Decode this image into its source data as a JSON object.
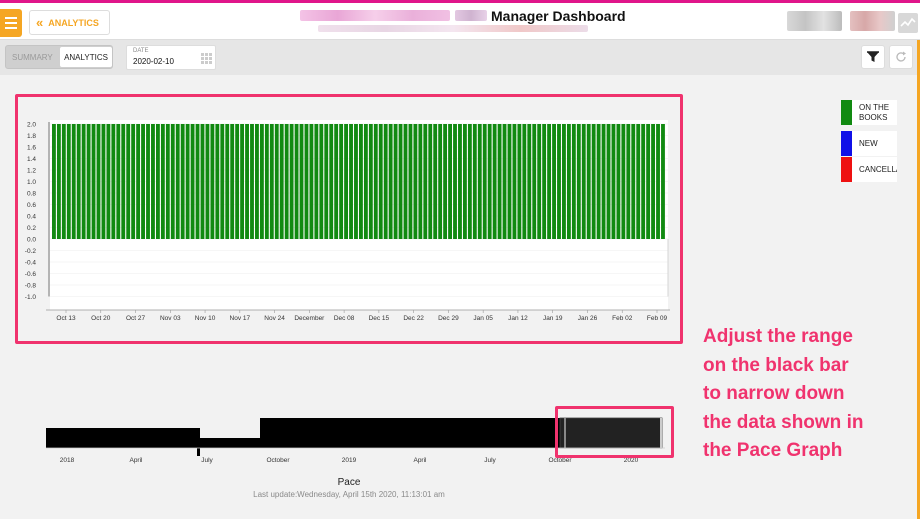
{
  "header": {
    "back_label": "ANALYTICS",
    "title": "Manager Dashboard"
  },
  "toolbar": {
    "summary_label": "SUMMARY",
    "analytics_label": "ANALYTICS",
    "date_label": "DATE",
    "date_value": "2020-02-10"
  },
  "icons": {
    "menu": "hamburger-icon",
    "back": "double-chevron-left-icon",
    "calendar": "calendar-icon",
    "filter": "filter-icon",
    "refresh": "refresh-icon",
    "activity": "activity-icon"
  },
  "colors": {
    "accent": "#f5a623",
    "bar_green": "#118a11",
    "annotation": "#f0336e",
    "topline": "#e0168a"
  },
  "legend": [
    {
      "label": "ON THE BOOKS",
      "color": "#118a11"
    },
    {
      "label": "NEW",
      "color": "#1010e8"
    },
    {
      "label": "CANCELLA",
      "color": "#ee1111"
    }
  ],
  "chart_data": [
    {
      "type": "bar",
      "ylim": [
        -1.2,
        2.0
      ],
      "y_ticks": [
        "2.0",
        "1.8",
        "1.6",
        "1.4",
        "1.2",
        "1.0",
        "0.8",
        "0.6",
        "0.4",
        "0.2",
        "0.0",
        "-0.2",
        "-0.4",
        "-0.6",
        "-0.8",
        "-1.0"
      ],
      "x_ticks": [
        "Oct 13",
        "Oct 20",
        "Oct 27",
        "Nov 03",
        "Nov 10",
        "Nov 17",
        "Nov 24",
        "December",
        "Dec 08",
        "Dec 15",
        "Dec 22",
        "Dec 29",
        "Jan 05",
        "Jan 12",
        "Jan 19",
        "Jan 26",
        "Feb 02",
        "Feb 09"
      ],
      "series": [
        {
          "name": "ON THE BOOKS",
          "color": "#118a11",
          "value_per_day": 2.0,
          "days": 124
        }
      ]
    },
    {
      "type": "area",
      "title": "Pace",
      "x_ticks": [
        "2018",
        "April",
        "July",
        "October",
        "2019",
        "April",
        "July",
        "October",
        "2020"
      ],
      "selected_range": [
        "October",
        "2020"
      ]
    }
  ],
  "annotation": {
    "lines": [
      "Adjust the range",
      "on the black bar",
      "to narrow down",
      "the data shown in",
      "the Pace Graph"
    ]
  },
  "footer": {
    "last_update": "Last update:Wednesday, April 15th 2020, 11:13:01 am"
  }
}
